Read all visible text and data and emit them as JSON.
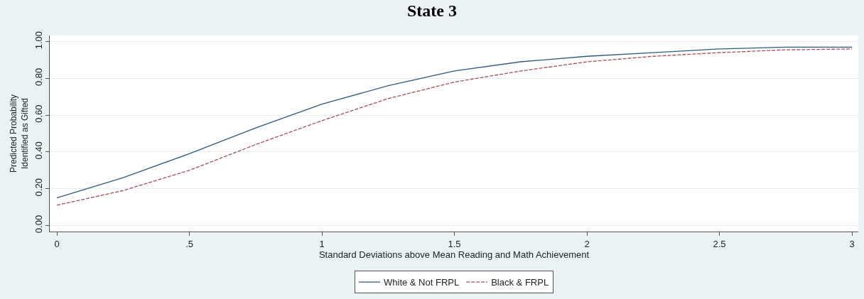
{
  "chart_data": {
    "type": "line",
    "title": "State 3",
    "xlabel": "Standard Deviations above Mean Reading and Math Achievement",
    "ylabel": "Predicted Probability\nIdentified as Gifted",
    "x": [
      0,
      0.25,
      0.5,
      0.75,
      1,
      1.25,
      1.5,
      1.75,
      2,
      2.25,
      2.5,
      2.75,
      3
    ],
    "series": [
      {
        "name": "White & Not FRPL",
        "color": "#2e5a80",
        "line_style": "solid",
        "values": [
          0.15,
          0.26,
          0.39,
          0.53,
          0.66,
          0.76,
          0.84,
          0.89,
          0.92,
          0.94,
          0.96,
          0.97,
          0.97
        ]
      },
      {
        "name": "Black & FRPL",
        "color": "#a84c58",
        "line_style": "dashed",
        "values": [
          0.11,
          0.19,
          0.3,
          0.44,
          0.57,
          0.69,
          0.78,
          0.84,
          0.89,
          0.92,
          0.94,
          0.955,
          0.96
        ]
      }
    ],
    "xlim": [
      -0.027,
      3.024
    ],
    "xticks": [
      0,
      {
        "value": 0.5,
        "label": ".5"
      },
      1,
      1.5,
      2,
      2.5,
      3
    ],
    "ylim": [
      -0.033,
      1.033
    ],
    "yticks": [
      {
        "value": 0,
        "label": "0.00"
      },
      {
        "value": 0.2,
        "label": "0.20"
      },
      {
        "value": 0.4,
        "label": "0.40"
      },
      {
        "value": 0.6,
        "label": "0.60"
      },
      {
        "value": 0.8,
        "label": "0.80"
      },
      {
        "value": 1,
        "label": "1.00"
      }
    ],
    "grid": "y",
    "legend": "bottom",
    "marker": "none"
  }
}
